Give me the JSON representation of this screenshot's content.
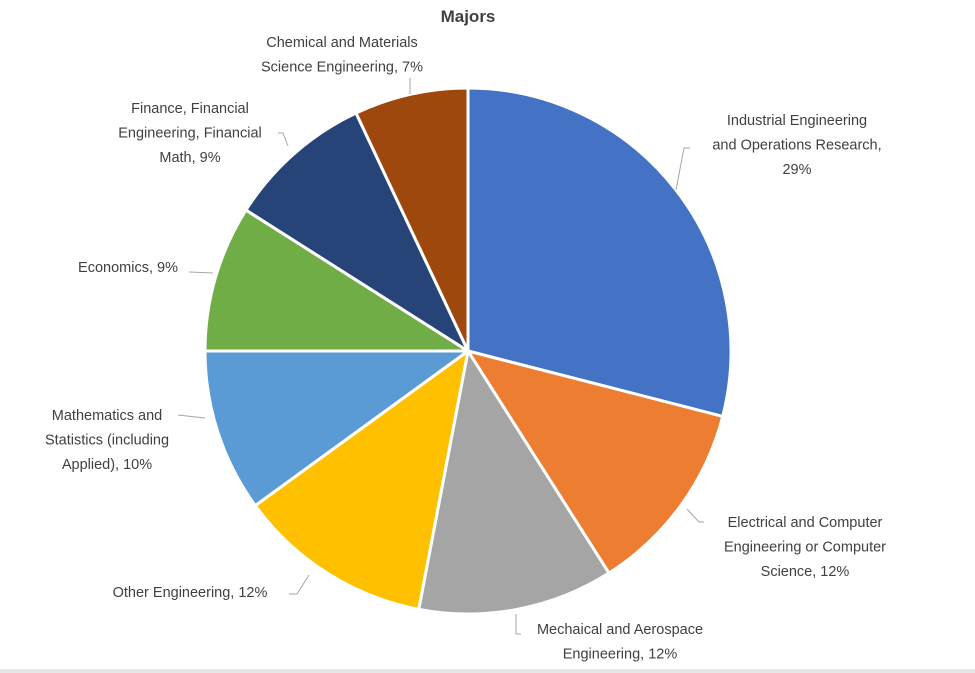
{
  "chart_data": {
    "type": "pie",
    "title": "Majors",
    "start_angle_deg": 0,
    "direction": "clockwise",
    "unit": "%",
    "slices": [
      {
        "label": [
          "Industrial Engineering",
          "and Operations Research,",
          "29%"
        ],
        "name": "Industrial Engineering and Operations Research",
        "value": 29,
        "color": "#4472c4"
      },
      {
        "label": [
          "Electrical and Computer",
          "Engineering or Computer",
          "Science, 12%"
        ],
        "name": "Electrical and Computer Engineering or Computer Science",
        "value": 12,
        "color": "#ed7d31"
      },
      {
        "label": [
          "Mechaical and Aerospace",
          "Engineering, 12%"
        ],
        "name": "Mechaical and Aerospace Engineering",
        "value": 12,
        "color": "#a5a5a5"
      },
      {
        "label": [
          "Other Engineering, 12%"
        ],
        "name": "Other Engineering",
        "value": 12,
        "color": "#ffc000"
      },
      {
        "label": [
          "Mathematics and",
          "Statistics (including",
          "Applied), 10%"
        ],
        "name": "Mathematics and Statistics (including Applied)",
        "value": 10,
        "color": "#5b9bd5"
      },
      {
        "label": [
          "Economics, 9%"
        ],
        "name": "Economics",
        "value": 9,
        "color": "#70ad47"
      },
      {
        "label": [
          "Finance, Financial",
          "Engineering, Financial",
          "Math, 9%"
        ],
        "name": "Finance, Financial Engineering, Financial Math",
        "value": 9,
        "color": "#264478"
      },
      {
        "label": [
          "Chemical and Materials",
          "Science Engineering, 7%"
        ],
        "name": "Chemical and Materials Science Engineering",
        "value": 7,
        "color": "#9e480e"
      }
    ]
  }
}
